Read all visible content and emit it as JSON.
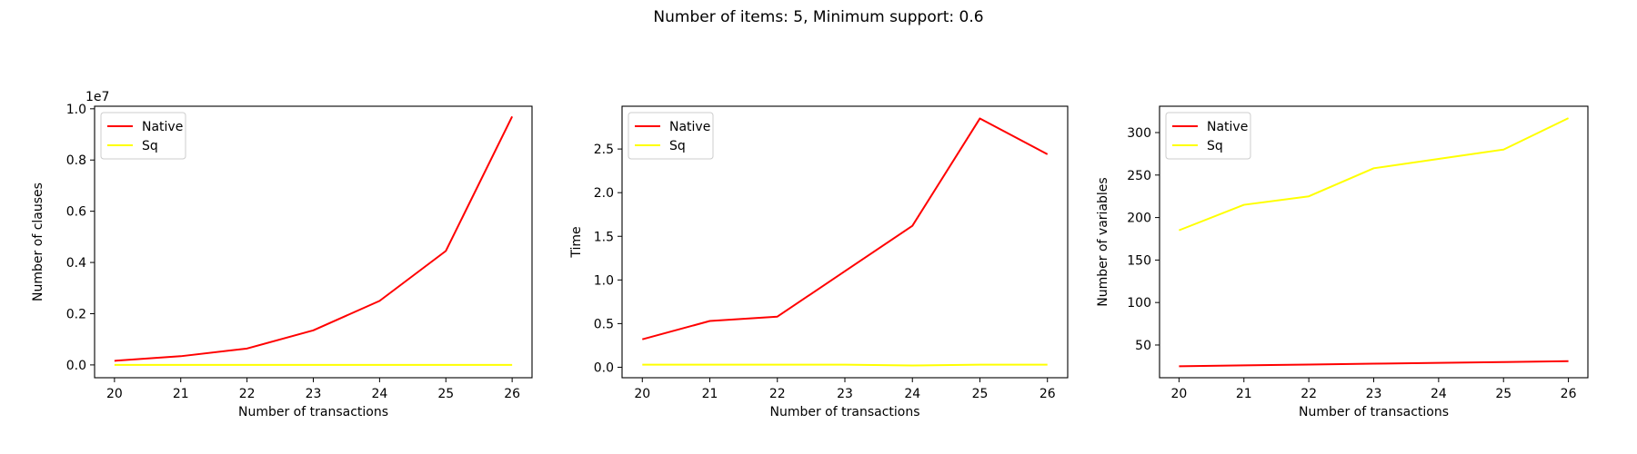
{
  "figure": {
    "title": "Number of items: 5, Minimum support: 0.6"
  },
  "chart_data": [
    {
      "type": "line",
      "title": "",
      "xlabel": "Number of transactions",
      "ylabel": "Number of clauses",
      "offset_text": "1e7",
      "x": [
        20,
        21,
        22,
        23,
        24,
        25,
        26
      ],
      "xticks": [
        "20",
        "21",
        "22",
        "23",
        "24",
        "25",
        "26"
      ],
      "xlim": [
        19.7,
        26.3
      ],
      "ylim": [
        -0.05,
        1.01
      ],
      "yticks": [
        "0.0",
        "0.2",
        "0.4",
        "0.6",
        "0.8",
        "1.0"
      ],
      "ytick_values": [
        0.0,
        0.2,
        0.4,
        0.6,
        0.8,
        1.0
      ],
      "legend": "upper left",
      "grid": false,
      "series": [
        {
          "name": "Native",
          "color": "#ff0000",
          "values": [
            0.016,
            0.034,
            0.064,
            0.135,
            0.25,
            0.445,
            0.97
          ]
        },
        {
          "name": "Sq",
          "color": "#ffff00",
          "values": [
            0.0,
            0.0,
            0.0,
            0.0,
            0.0,
            0.0,
            0.0
          ]
        }
      ]
    },
    {
      "type": "line",
      "title": "",
      "xlabel": "Number of transactions",
      "ylabel": "Time",
      "x": [
        20,
        21,
        22,
        23,
        24,
        25,
        26
      ],
      "xticks": [
        "20",
        "21",
        "22",
        "23",
        "24",
        "25",
        "26"
      ],
      "xlim": [
        19.7,
        26.3
      ],
      "ylim": [
        -0.12,
        2.99
      ],
      "yticks": [
        "0.0",
        "0.5",
        "1.0",
        "1.5",
        "2.0",
        "2.5"
      ],
      "ytick_values": [
        0.0,
        0.5,
        1.0,
        1.5,
        2.0,
        2.5
      ],
      "legend": "upper left",
      "grid": false,
      "series": [
        {
          "name": "Native",
          "color": "#ff0000",
          "values": [
            0.32,
            0.53,
            0.58,
            1.1,
            1.62,
            2.85,
            2.44
          ]
        },
        {
          "name": "Sq",
          "color": "#ffff00",
          "values": [
            0.03,
            0.03,
            0.03,
            0.03,
            0.02,
            0.03,
            0.03
          ]
        }
      ]
    },
    {
      "type": "line",
      "title": "",
      "xlabel": "Number of transactions",
      "ylabel": "Number of variables",
      "x": [
        20,
        21,
        22,
        23,
        24,
        25,
        26
      ],
      "xticks": [
        "20",
        "21",
        "22",
        "23",
        "24",
        "25",
        "26"
      ],
      "xlim": [
        19.7,
        26.3
      ],
      "ylim": [
        11.5,
        331
      ],
      "yticks": [
        "50",
        "100",
        "150",
        "200",
        "250",
        "300"
      ],
      "ytick_values": [
        50,
        100,
        150,
        200,
        250,
        300
      ],
      "legend": "upper left",
      "grid": false,
      "series": [
        {
          "name": "Native",
          "color": "#ff0000",
          "values": [
            25,
            26,
            27,
            28,
            29,
            30,
            31
          ]
        },
        {
          "name": "Sq",
          "color": "#ffff00",
          "values": [
            185,
            215,
            225,
            258,
            269,
            280,
            317
          ]
        }
      ]
    }
  ]
}
